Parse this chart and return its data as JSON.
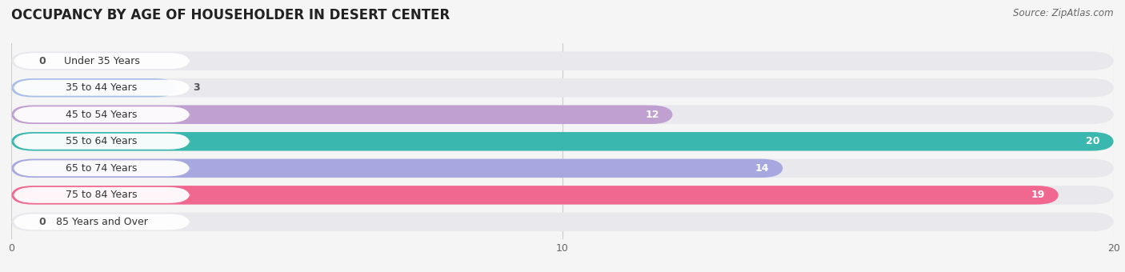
{
  "title": "OCCUPANCY BY AGE OF HOUSEHOLDER IN DESERT CENTER",
  "source": "Source: ZipAtlas.com",
  "categories": [
    "Under 35 Years",
    "35 to 44 Years",
    "45 to 54 Years",
    "55 to 64 Years",
    "65 to 74 Years",
    "75 to 84 Years",
    "85 Years and Over"
  ],
  "values": [
    0,
    3,
    12,
    20,
    14,
    19,
    0
  ],
  "bar_colors": [
    "#f0a0a8",
    "#a8c0e8",
    "#c0a0d0",
    "#3ab8b0",
    "#a8a8e0",
    "#f06890",
    "#f8d0a0"
  ],
  "xlim": [
    0,
    20
  ],
  "xticks": [
    0,
    10,
    20
  ],
  "background_color": "#f5f5f5",
  "bar_background_color": "#e8e8ed",
  "title_fontsize": 12,
  "source_fontsize": 8.5,
  "label_fontsize": 9,
  "value_fontsize": 9
}
